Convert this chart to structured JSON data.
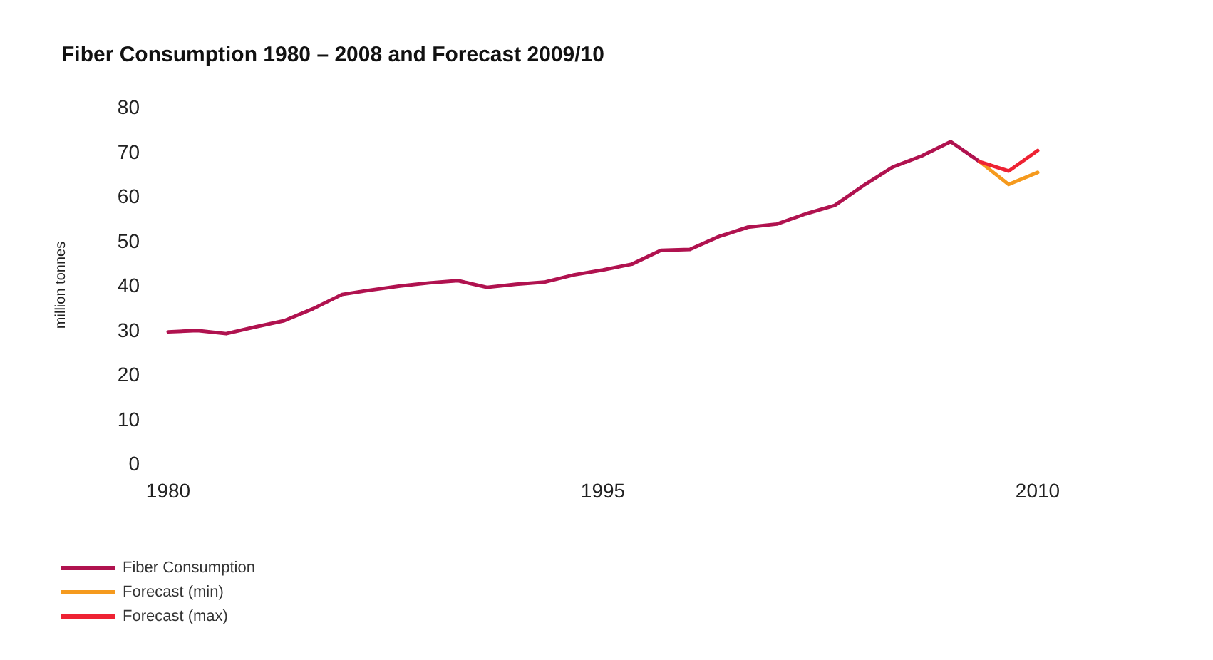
{
  "chart_data": {
    "type": "line",
    "title": "Fiber Consumption 1980 – 2008 and Forecast 2009/10",
    "ylabel": "million tonnes",
    "xlim": [
      1980,
      2010
    ],
    "xticks": [
      1980,
      1995,
      2010
    ],
    "ylim": [
      0,
      80
    ],
    "yticks": [
      0,
      10,
      20,
      30,
      40,
      50,
      60,
      70,
      80
    ],
    "grid": false,
    "legend": "bottom left",
    "marker": "none",
    "line_style": "solid",
    "x": [
      1980,
      1981,
      1982,
      1983,
      1984,
      1985,
      1986,
      1987,
      1988,
      1989,
      1990,
      1991,
      1992,
      1993,
      1994,
      1995,
      1996,
      1997,
      1998,
      1999,
      2000,
      2001,
      2002,
      2003,
      2004,
      2005,
      2006,
      2007,
      2008
    ],
    "series": [
      {
        "name": "Fiber Consumption",
        "color": "#b0124f",
        "values": [
          29.5,
          29.8,
          29.1,
          30.6,
          32,
          34.7,
          37.9,
          38.9,
          39.8,
          40.5,
          41,
          39.5,
          40.2,
          40.7,
          42.3,
          43.4,
          44.7,
          47.8,
          48,
          50.9,
          53,
          53.7,
          56,
          57.9,
          62.4,
          66.5,
          69,
          72.2,
          67.7
        ]
      },
      {
        "name": "Forecast (min)",
        "color": "#f59a1e",
        "x": [
          2008,
          2009,
          2010
        ],
        "values": [
          67.7,
          62.6,
          65.3
        ]
      },
      {
        "name": "Forecast (max)",
        "color": "#ee2233",
        "x": [
          2008,
          2009,
          2010
        ],
        "values": [
          67.7,
          65.6,
          70.2
        ]
      }
    ]
  }
}
